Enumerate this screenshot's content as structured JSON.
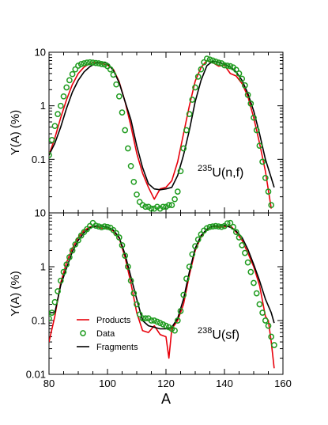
{
  "chart_data": [
    {
      "type": "line",
      "panel": "top",
      "annotation": {
        "sup": "235",
        "text": "U(n,f)"
      },
      "ylabel": "Y(A) (%)",
      "yscale": "log",
      "ylim": [
        0.01,
        10
      ],
      "xlim": [
        80,
        160
      ],
      "yticks": [
        {
          "v": 10,
          "label": "10"
        },
        {
          "v": 1,
          "label": "1"
        },
        {
          "v": 0.1,
          "label": "0.1"
        }
      ],
      "series": [
        {
          "kind": "line",
          "color": "#e8000b",
          "x": [
            80,
            82,
            84,
            86,
            88,
            90,
            92,
            94,
            96,
            98,
            100,
            102,
            104,
            106,
            108,
            110,
            112,
            114,
            116,
            118,
            120,
            122,
            124,
            126,
            128,
            130,
            132,
            134,
            136,
            138,
            140,
            142,
            144,
            146,
            148,
            150,
            152,
            154,
            156
          ],
          "y": [
            0.12,
            0.25,
            0.6,
            1.3,
            2.5,
            4.0,
            5.3,
            6.2,
            6.5,
            6.1,
            5.8,
            4.8,
            2.8,
            1.2,
            0.42,
            0.13,
            0.055,
            0.03,
            0.018,
            0.028,
            0.03,
            0.04,
            0.09,
            0.3,
            1.0,
            2.9,
            5.2,
            7.0,
            6.4,
            5.5,
            5.7,
            4.0,
            3.6,
            2.6,
            1.5,
            0.6,
            0.2,
            0.06,
            0.012
          ]
        },
        {
          "kind": "line",
          "color": "#000000",
          "x": [
            80,
            82,
            84,
            86,
            88,
            90,
            92,
            94,
            96,
            98,
            100,
            102,
            104,
            106,
            108,
            110,
            112,
            114,
            116,
            118,
            120,
            122,
            124,
            126,
            128,
            130,
            132,
            134,
            136,
            138,
            140,
            142,
            144,
            146,
            148,
            150,
            152,
            154,
            156,
            157
          ],
          "y": [
            0.12,
            0.2,
            0.4,
            0.9,
            1.8,
            3.0,
            4.3,
            5.4,
            6.2,
            6.6,
            6.2,
            4.6,
            2.7,
            1.2,
            0.55,
            0.18,
            0.07,
            0.035,
            0.028,
            0.027,
            0.028,
            0.03,
            0.05,
            0.12,
            0.35,
            1.2,
            3.0,
            5.6,
            6.8,
            6.5,
            6.0,
            5.3,
            4.3,
            3.0,
            1.7,
            0.8,
            0.3,
            0.1,
            0.045,
            0.03
          ]
        },
        {
          "kind": "scatter",
          "color": "#1e9b1e",
          "x": [
            80,
            81,
            82,
            83,
            84,
            85,
            86,
            87,
            88,
            89,
            90,
            91,
            92,
            93,
            94,
            95,
            96,
            97,
            98,
            99,
            100,
            101,
            102,
            103,
            104,
            105,
            106,
            107,
            108,
            109,
            110,
            111,
            112,
            113,
            114,
            115,
            116,
            117,
            118,
            119,
            120,
            121,
            122,
            123,
            124,
            125,
            126,
            127,
            128,
            129,
            130,
            131,
            132,
            133,
            134,
            135,
            136,
            137,
            138,
            139,
            140,
            141,
            142,
            143,
            144,
            145,
            146,
            147,
            148,
            149,
            150,
            151,
            152,
            153,
            154,
            155,
            156
          ],
          "y": [
            0.12,
            0.23,
            0.42,
            0.7,
            1.0,
            1.5,
            2.2,
            3.0,
            3.9,
            4.8,
            5.6,
            6.0,
            6.2,
            6.4,
            6.5,
            6.4,
            6.3,
            6.2,
            6.0,
            5.9,
            5.5,
            4.8,
            3.8,
            2.5,
            1.5,
            0.75,
            0.35,
            0.16,
            0.075,
            0.038,
            0.022,
            0.016,
            0.014,
            0.013,
            0.013,
            0.012,
            0.012,
            0.013,
            0.012,
            0.013,
            0.013,
            0.014,
            0.014,
            0.018,
            0.025,
            0.06,
            0.16,
            0.35,
            0.7,
            1.3,
            2.2,
            3.5,
            4.8,
            6.5,
            7.6,
            7.3,
            7.0,
            6.7,
            6.4,
            6.2,
            5.7,
            5.6,
            5.5,
            5.2,
            4.7,
            4.0,
            3.2,
            2.4,
            1.6,
            1.1,
            0.6,
            0.35,
            0.18,
            0.09,
            0.045,
            0.025,
            0.014
          ]
        }
      ]
    },
    {
      "type": "line",
      "panel": "bottom",
      "annotation": {
        "sup": "238",
        "text": "U(sf)"
      },
      "ylabel": "Y(A) (%)",
      "xlabel": "A",
      "yscale": "log",
      "ylim": [
        0.01,
        10
      ],
      "xlim": [
        80,
        160
      ],
      "xticks": [
        80,
        100,
        120,
        140,
        160
      ],
      "yticks": [
        {
          "v": 10,
          "label": "10"
        },
        {
          "v": 1,
          "label": "1"
        },
        {
          "v": 0.1,
          "label": "0.1"
        },
        {
          "v": 0.01,
          "label": "0.01"
        }
      ],
      "legend": {
        "placement": "bottom-left",
        "items": [
          {
            "label": "Products",
            "kind": "line",
            "color": "#e8000b"
          },
          {
            "label": "Data",
            "kind": "marker",
            "color": "#1e9b1e"
          },
          {
            "label": "Fragments",
            "kind": "line",
            "color": "#000000"
          }
        ]
      },
      "series": [
        {
          "name": "Products",
          "kind": "line",
          "color": "#e8000b",
          "x": [
            80,
            82,
            84,
            86,
            88,
            90,
            92,
            94,
            96,
            98,
            100,
            102,
            104,
            106,
            108,
            110,
            112,
            114,
            116,
            118,
            120,
            121,
            122,
            124,
            126,
            128,
            130,
            132,
            134,
            136,
            138,
            140,
            142,
            144,
            146,
            148,
            150,
            152,
            154,
            155,
            156,
            157
          ],
          "y": [
            0.04,
            0.12,
            0.5,
            1.2,
            2.2,
            3.5,
            4.7,
            5.5,
            5.6,
            5.2,
            5.1,
            4.6,
            3.4,
            1.5,
            0.5,
            0.14,
            0.065,
            0.06,
            0.08,
            0.055,
            0.05,
            0.02,
            0.07,
            0.1,
            0.2,
            0.7,
            2.0,
            3.6,
            4.9,
            5.6,
            5.4,
            5.5,
            5.8,
            4.4,
            3.1,
            1.8,
            1.0,
            0.45,
            0.12,
            0.1,
            0.04,
            0.013
          ]
        },
        {
          "name": "Fragments",
          "kind": "line",
          "color": "#000000",
          "x": [
            80,
            82,
            84,
            86,
            88,
            90,
            92,
            94,
            96,
            98,
            100,
            102,
            104,
            106,
            108,
            110,
            112,
            114,
            116,
            118,
            120,
            122,
            124,
            126,
            128,
            130,
            132,
            134,
            136,
            138,
            140,
            142,
            144,
            146,
            148,
            150,
            152,
            154,
            156,
            157
          ],
          "y": [
            0.14,
            0.14,
            0.45,
            0.95,
            1.9,
            3.1,
            4.3,
            5.3,
            5.7,
            5.7,
            5.4,
            4.8,
            3.5,
            1.7,
            0.65,
            0.25,
            0.1,
            0.08,
            0.075,
            0.07,
            0.07,
            0.075,
            0.11,
            0.25,
            0.8,
            2.2,
            3.8,
            5.0,
            5.7,
            5.7,
            5.9,
            5.4,
            4.6,
            3.5,
            2.1,
            1.1,
            0.55,
            0.25,
            0.14,
            0.09
          ]
        },
        {
          "name": "Data",
          "kind": "scatter",
          "color": "#1e9b1e",
          "x": [
            80,
            81,
            82,
            83,
            84,
            85,
            86,
            87,
            88,
            89,
            90,
            91,
            92,
            93,
            94,
            95,
            96,
            97,
            98,
            99,
            100,
            101,
            102,
            103,
            104,
            105,
            106,
            107,
            108,
            109,
            110,
            111,
            112,
            113,
            114,
            115,
            116,
            117,
            118,
            119,
            120,
            121,
            122,
            123,
            124,
            125,
            126,
            127,
            128,
            129,
            130,
            131,
            132,
            133,
            134,
            135,
            136,
            137,
            138,
            139,
            140,
            141,
            142,
            143,
            144,
            145,
            146,
            147,
            148,
            149,
            150,
            151,
            152,
            153,
            154,
            155,
            156,
            157
          ],
          "y": [
            0.11,
            0.14,
            0.22,
            0.35,
            0.55,
            0.8,
            1.1,
            1.5,
            2.0,
            2.6,
            3.1,
            3.8,
            4.4,
            5.0,
            5.7,
            6.5,
            5.8,
            5.6,
            5.4,
            5.6,
            5.5,
            5.3,
            4.8,
            4.2,
            3.5,
            2.5,
            1.6,
            1.0,
            0.55,
            0.32,
            0.2,
            0.13,
            0.11,
            0.11,
            0.11,
            0.1,
            0.1,
            0.095,
            0.09,
            0.085,
            0.08,
            0.075,
            0.07,
            0.065,
            0.1,
            0.15,
            0.3,
            0.6,
            1.0,
            1.7,
            2.4,
            3.2,
            4.0,
            4.7,
            5.2,
            5.5,
            5.6,
            5.7,
            5.6,
            5.5,
            5.7,
            6.4,
            6.5,
            5.5,
            4.4,
            3.5,
            2.5,
            1.8,
            1.2,
            0.8,
            0.5,
            0.32,
            0.2,
            0.14,
            0.1,
            0.08,
            0.05,
            0.035
          ]
        }
      ]
    }
  ]
}
